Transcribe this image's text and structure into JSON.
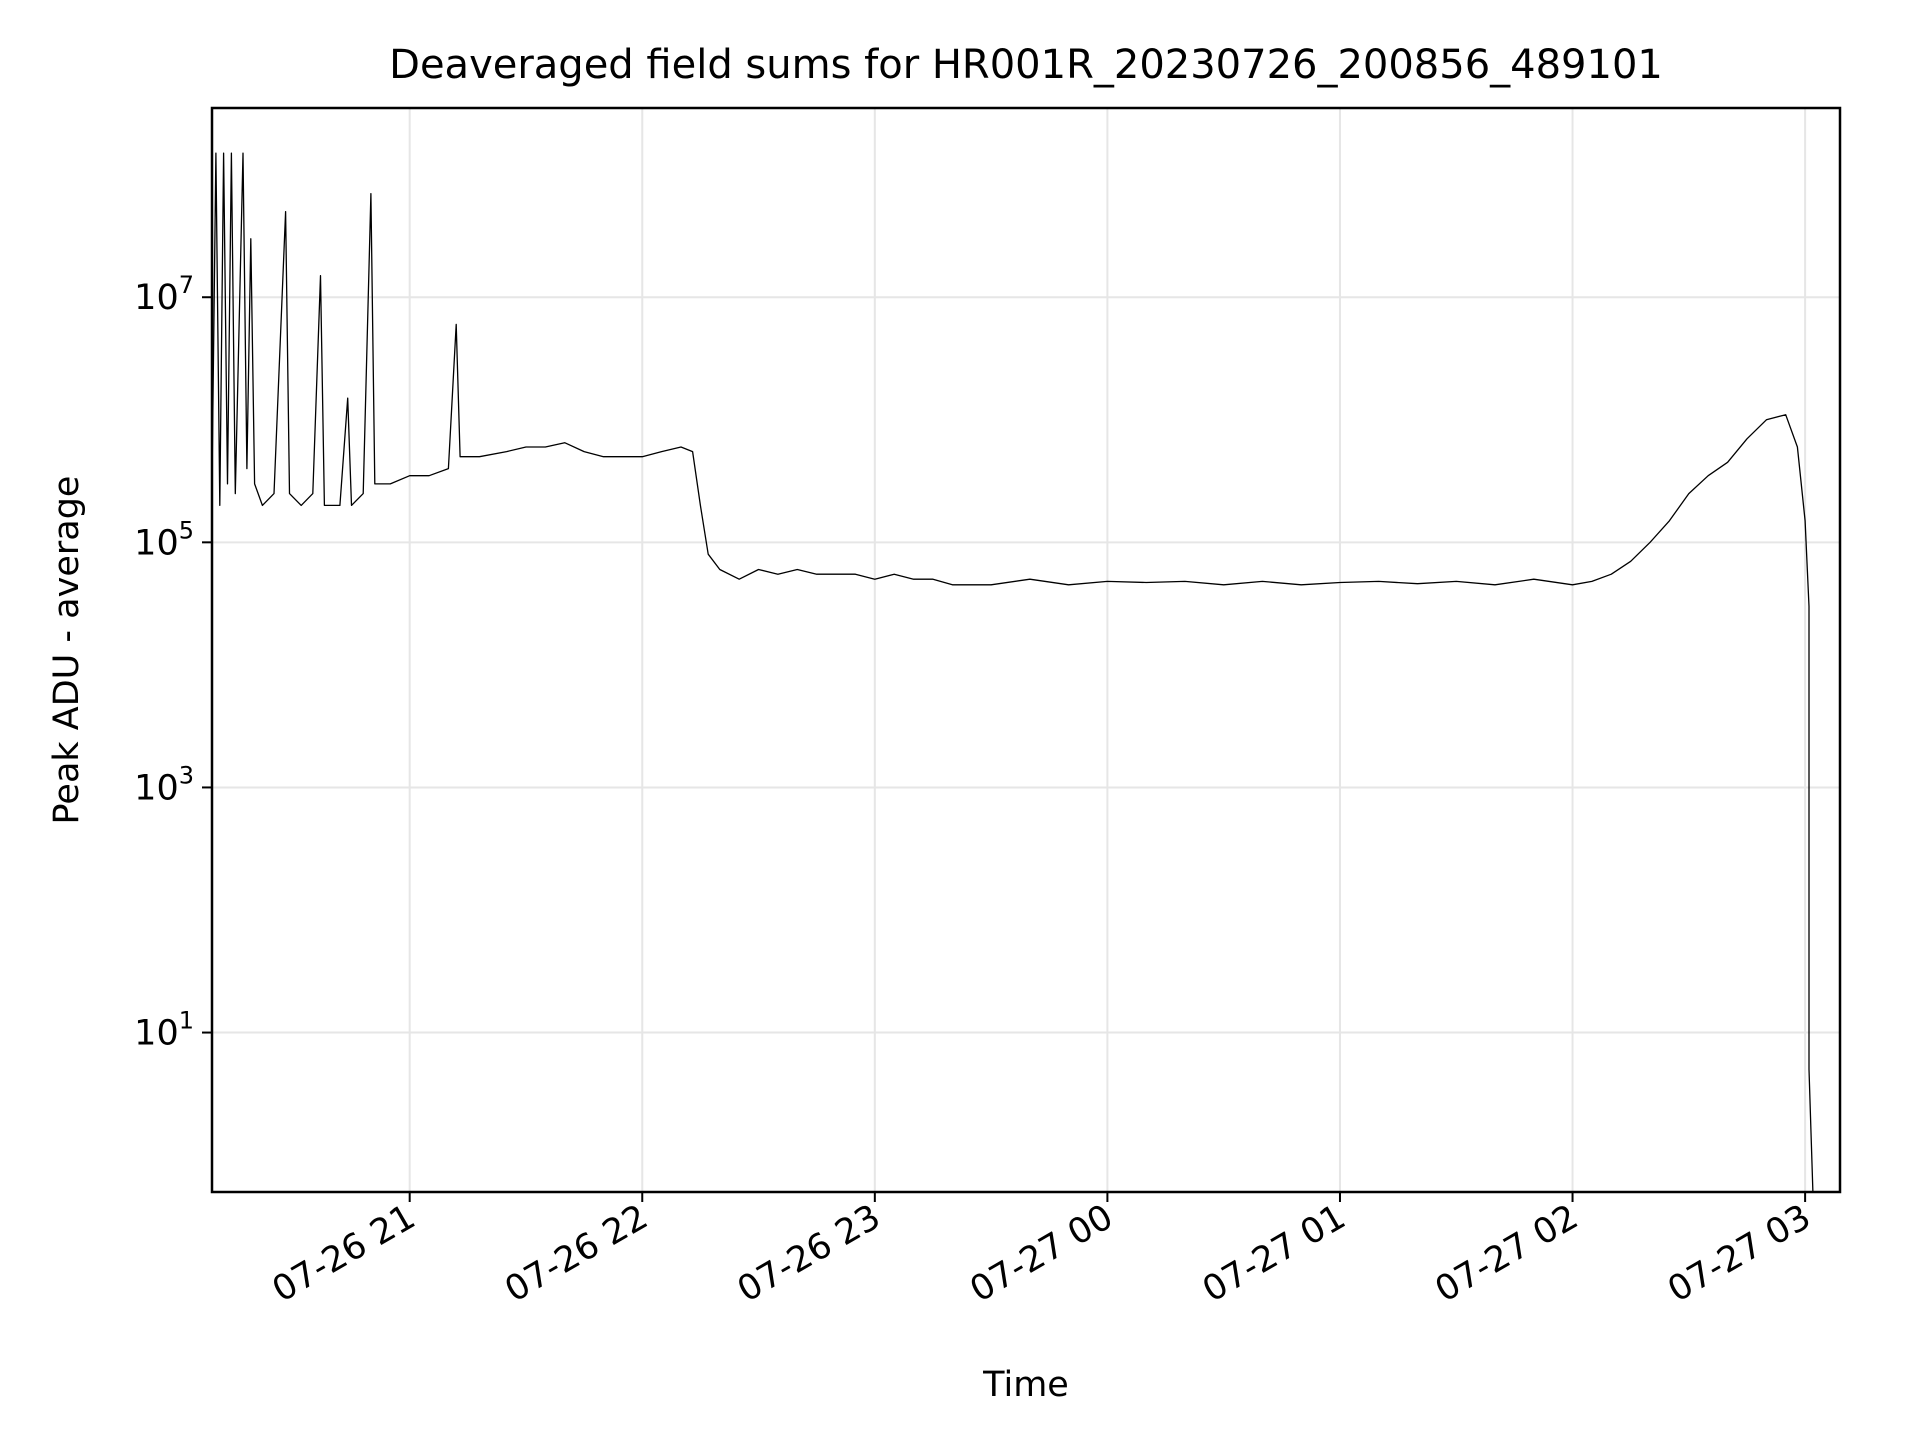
{
  "chart_data": {
    "type": "line",
    "title": "Deaveraged field sums for HR001R_20230726_200856_489101",
    "xlabel": "Time",
    "ylabel": "Peak ADU - average",
    "yscale": "log",
    "xlim": [
      "07-26 20:09",
      "07-27 03:09"
    ],
    "ylim": [
      0.5,
      350000000.0
    ],
    "grid": true,
    "line_color": "#000000",
    "x_ticks": [
      {
        "value": "07-26 21:00",
        "label": "07-26 21"
      },
      {
        "value": "07-26 22:00",
        "label": "07-26 22"
      },
      {
        "value": "07-26 23:00",
        "label": "07-26 23"
      },
      {
        "value": "07-27 00:00",
        "label": "07-27 00"
      },
      {
        "value": "07-27 01:00",
        "label": "07-27 01"
      },
      {
        "value": "07-27 02:00",
        "label": "07-27 02"
      },
      {
        "value": "07-27 03:00",
        "label": "07-27 03"
      }
    ],
    "y_ticks": [
      {
        "value": 10,
        "base": "10",
        "exp": "1"
      },
      {
        "value": 1000,
        "base": "10",
        "exp": "3"
      },
      {
        "value": 100000,
        "base": "10",
        "exp": "5"
      },
      {
        "value": 10000000,
        "base": "10",
        "exp": "7"
      }
    ],
    "series": [
      {
        "points": [
          [
            "07-26 20:09",
            300000
          ],
          [
            "07-26 20:10",
            150000000
          ],
          [
            "07-26 20:11",
            200000
          ],
          [
            "07-26 20:12",
            150000000
          ],
          [
            "07-26 20:13",
            300000
          ],
          [
            "07-26 20:14",
            150000000
          ],
          [
            "07-26 20:15",
            250000
          ],
          [
            "07-26 20:17",
            150000000
          ],
          [
            "07-26 20:18",
            400000
          ],
          [
            "07-26 20:19",
            30000000
          ],
          [
            "07-26 20:20",
            300000
          ],
          [
            "07-26 20:22",
            200000
          ],
          [
            "07-26 20:25",
            250000
          ],
          [
            "07-26 20:28",
            50000000
          ],
          [
            "07-26 20:29",
            250000
          ],
          [
            "07-26 20:32",
            200000
          ],
          [
            "07-26 20:35",
            250000
          ],
          [
            "07-26 20:37",
            15000000
          ],
          [
            "07-26 20:38",
            200000
          ],
          [
            "07-26 20:42",
            200000
          ],
          [
            "07-26 20:44",
            1500000
          ],
          [
            "07-26 20:45",
            200000
          ],
          [
            "07-26 20:48",
            250000
          ],
          [
            "07-26 20:50",
            70000000
          ],
          [
            "07-26 20:51",
            300000
          ],
          [
            "07-26 20:55",
            300000
          ],
          [
            "07-26 21:00",
            350000
          ],
          [
            "07-26 21:05",
            350000
          ],
          [
            "07-26 21:10",
            400000
          ],
          [
            "07-26 21:12",
            6000000
          ],
          [
            "07-26 21:13",
            500000
          ],
          [
            "07-26 21:18",
            500000
          ],
          [
            "07-26 21:25",
            550000
          ],
          [
            "07-26 21:30",
            600000
          ],
          [
            "07-26 21:35",
            600000
          ],
          [
            "07-26 21:40",
            650000
          ],
          [
            "07-26 21:45",
            550000
          ],
          [
            "07-26 21:50",
            500000
          ],
          [
            "07-26 21:55",
            500000
          ],
          [
            "07-26 22:00",
            500000
          ],
          [
            "07-26 22:05",
            550000
          ],
          [
            "07-26 22:10",
            600000
          ],
          [
            "07-26 22:13",
            550000
          ],
          [
            "07-26 22:15",
            200000
          ],
          [
            "07-26 22:17",
            80000
          ],
          [
            "07-26 22:20",
            60000
          ],
          [
            "07-26 22:25",
            50000
          ],
          [
            "07-26 22:30",
            60000
          ],
          [
            "07-26 22:35",
            55000
          ],
          [
            "07-26 22:40",
            60000
          ],
          [
            "07-26 22:45",
            55000
          ],
          [
            "07-26 22:50",
            55000
          ],
          [
            "07-26 22:55",
            55000
          ],
          [
            "07-26 23:00",
            50000
          ],
          [
            "07-26 23:05",
            55000
          ],
          [
            "07-26 23:10",
            50000
          ],
          [
            "07-26 23:15",
            50000
          ],
          [
            "07-26 23:20",
            45000
          ],
          [
            "07-26 23:30",
            45000
          ],
          [
            "07-26 23:40",
            50000
          ],
          [
            "07-26 23:50",
            45000
          ],
          [
            "07-27 00:00",
            48000
          ],
          [
            "07-27 00:10",
            47000
          ],
          [
            "07-27 00:20",
            48000
          ],
          [
            "07-27 00:30",
            45000
          ],
          [
            "07-27 00:40",
            48000
          ],
          [
            "07-27 00:50",
            45000
          ],
          [
            "07-27 01:00",
            47000
          ],
          [
            "07-27 01:10",
            48000
          ],
          [
            "07-27 01:20",
            46000
          ],
          [
            "07-27 01:30",
            48000
          ],
          [
            "07-27 01:40",
            45000
          ],
          [
            "07-27 01:50",
            50000
          ],
          [
            "07-27 02:00",
            45000
          ],
          [
            "07-27 02:05",
            48000
          ],
          [
            "07-27 02:10",
            55000
          ],
          [
            "07-27 02:15",
            70000
          ],
          [
            "07-27 02:20",
            100000
          ],
          [
            "07-27 02:25",
            150000
          ],
          [
            "07-27 02:30",
            250000
          ],
          [
            "07-27 02:35",
            350000
          ],
          [
            "07-27 02:40",
            450000
          ],
          [
            "07-27 02:45",
            700000
          ],
          [
            "07-27 02:50",
            1000000
          ],
          [
            "07-27 02:55",
            1100000
          ],
          [
            "07-27 02:58",
            600000
          ],
          [
            "07-27 03:00",
            150000
          ],
          [
            "07-27 03:01",
            30000
          ],
          [
            "07-27 03:01",
            5
          ],
          [
            "07-27 03:02",
            0.5
          ]
        ]
      }
    ]
  }
}
